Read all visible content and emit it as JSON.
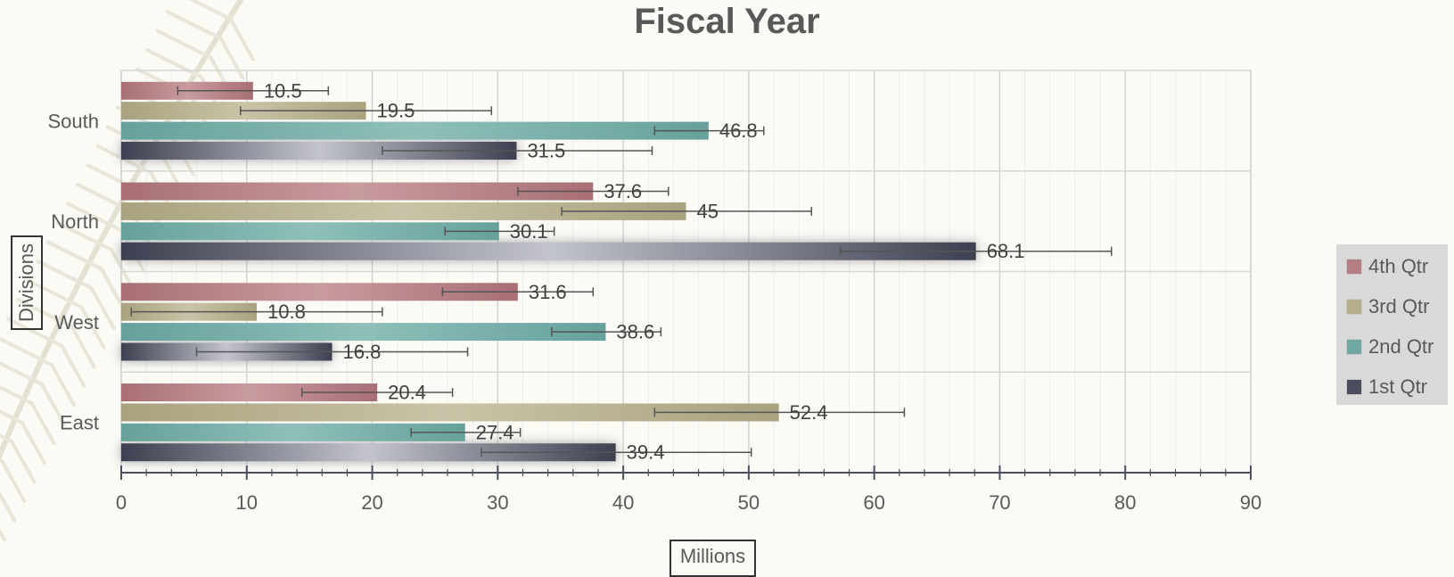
{
  "chart_data": {
    "type": "bar",
    "orientation": "horizontal",
    "title": "Fiscal Year",
    "xlabel": "Millions",
    "ylabel": "Divisions",
    "xlim": [
      0,
      90
    ],
    "x_ticks": [
      0,
      10,
      20,
      30,
      40,
      50,
      60,
      70,
      80,
      90
    ],
    "categories": [
      "East",
      "West",
      "North",
      "South"
    ],
    "series": [
      {
        "name": "1st Qtr",
        "color": "#4a4d5e",
        "values": [
          39.4,
          16.8,
          68.1,
          31.5
        ],
        "data_labels": [
          "39.4",
          "16.8",
          "68.1",
          "31.5"
        ],
        "error_bars": [
          [
            28.7,
            50.2
          ],
          [
            6.0,
            27.6
          ],
          [
            57.3,
            78.9
          ],
          [
            20.8,
            42.3
          ]
        ]
      },
      {
        "name": "2nd Qtr",
        "color": "#6fa8a2",
        "values": [
          27.4,
          38.6,
          30.1,
          46.8
        ],
        "data_labels": [
          "27.4",
          "38.6",
          "30.1",
          "46.8"
        ],
        "error_bars": [
          [
            23.1,
            31.8
          ],
          [
            34.3,
            43.0
          ],
          [
            25.8,
            34.5
          ],
          [
            42.5,
            51.2
          ]
        ]
      },
      {
        "name": "3rd Qtr",
        "color": "#b4ae8c",
        "values": [
          52.4,
          10.8,
          45,
          19.5
        ],
        "data_labels": [
          "52.4",
          "10.8",
          "45",
          "19.5"
        ],
        "error_bars": [
          [
            42.5,
            62.4
          ],
          [
            0.8,
            20.8
          ],
          [
            35.1,
            55.0
          ],
          [
            9.5,
            29.5
          ]
        ]
      },
      {
        "name": "4th Qtr",
        "color": "#b57e83",
        "values": [
          20.4,
          31.6,
          37.6,
          10.5
        ],
        "data_labels": [
          "20.4",
          "31.6",
          "37.6",
          "10.5"
        ],
        "error_bars": [
          [
            14.4,
            26.4
          ],
          [
            25.6,
            37.6
          ],
          [
            31.6,
            43.6
          ],
          [
            4.5,
            16.5
          ]
        ]
      }
    ],
    "legend": {
      "position": "right",
      "items": [
        "4th Qtr",
        "3rd Qtr",
        "2nd Qtr",
        "1st Qtr"
      ]
    },
    "grid": true
  }
}
